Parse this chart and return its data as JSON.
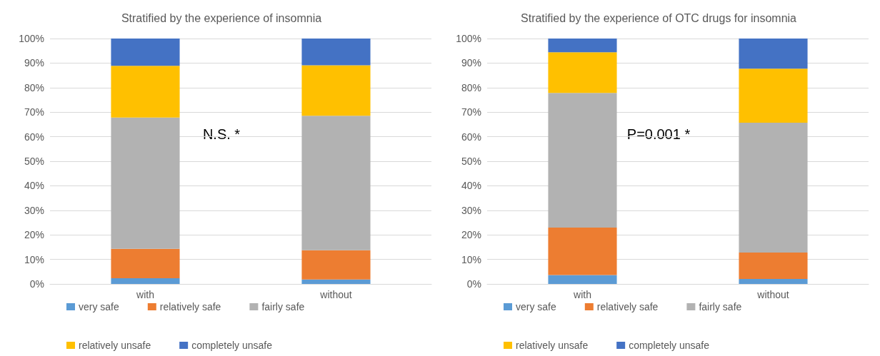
{
  "chart_data": [
    {
      "type": "bar",
      "stacked": true,
      "title": "Stratified by the experience of insomnia",
      "categories": [
        "with",
        "without"
      ],
      "series": [
        {
          "name": "very safe",
          "color": "#5b9bd5",
          "values": [
            2.3,
            1.8
          ]
        },
        {
          "name": "relatively safe",
          "color": "#ed7d31",
          "values": [
            12.0,
            11.9
          ]
        },
        {
          "name": "fairly safe",
          "color": "#b2b2b2",
          "values": [
            53.5,
            54.8
          ]
        },
        {
          "name": "relatively unsafe",
          "color": "#ffc000",
          "values": [
            21.1,
            20.6
          ]
        },
        {
          "name": "completely unsafe",
          "color": "#4472c4",
          "values": [
            11.1,
            10.9
          ]
        }
      ],
      "ylim": [
        0,
        100
      ],
      "yticks": [
        {
          "value": 0,
          "label": "0%"
        },
        {
          "value": 10,
          "label": "10%"
        },
        {
          "value": 20,
          "label": "20%"
        },
        {
          "value": 30,
          "label": "30%"
        },
        {
          "value": 40,
          "label": "40%"
        },
        {
          "value": 50,
          "label": "50%"
        },
        {
          "value": 60,
          "label": "60%"
        },
        {
          "value": 70,
          "label": "70%"
        },
        {
          "value": 80,
          "label": "80%"
        },
        {
          "value": 90,
          "label": "90%"
        },
        {
          "value": 100,
          "label": "100%"
        }
      ],
      "grid": "y",
      "legend": "bottom",
      "annotations": [
        "N.S. *"
      ]
    },
    {
      "type": "bar",
      "stacked": true,
      "title": "Stratified by the experience of OTC drugs for insomnia",
      "categories": [
        "with",
        "without"
      ],
      "series": [
        {
          "name": "very safe",
          "color": "#5b9bd5",
          "values": [
            3.6,
            2.0
          ]
        },
        {
          "name": "relatively safe",
          "color": "#ed7d31",
          "values": [
            19.4,
            10.8
          ]
        },
        {
          "name": "fairly safe",
          "color": "#b2b2b2",
          "values": [
            54.8,
            52.9
          ]
        },
        {
          "name": "relatively unsafe",
          "color": "#ffc000",
          "values": [
            16.6,
            22.0
          ]
        },
        {
          "name": "completely unsafe",
          "color": "#4472c4",
          "values": [
            5.6,
            12.3
          ]
        }
      ],
      "ylim": [
        0,
        100
      ],
      "yticks": [
        {
          "value": 0,
          "label": "0%"
        },
        {
          "value": 10,
          "label": "10%"
        },
        {
          "value": 20,
          "label": "20%"
        },
        {
          "value": 30,
          "label": "30%"
        },
        {
          "value": 40,
          "label": "40%"
        },
        {
          "value": 50,
          "label": "50%"
        },
        {
          "value": 60,
          "label": "60%"
        },
        {
          "value": 70,
          "label": "70%"
        },
        {
          "value": 80,
          "label": "80%"
        },
        {
          "value": 90,
          "label": "90%"
        },
        {
          "value": 100,
          "label": "100%"
        }
      ],
      "grid": "y",
      "legend": "bottom",
      "annotations": [
        "P=0.001 *"
      ]
    }
  ]
}
